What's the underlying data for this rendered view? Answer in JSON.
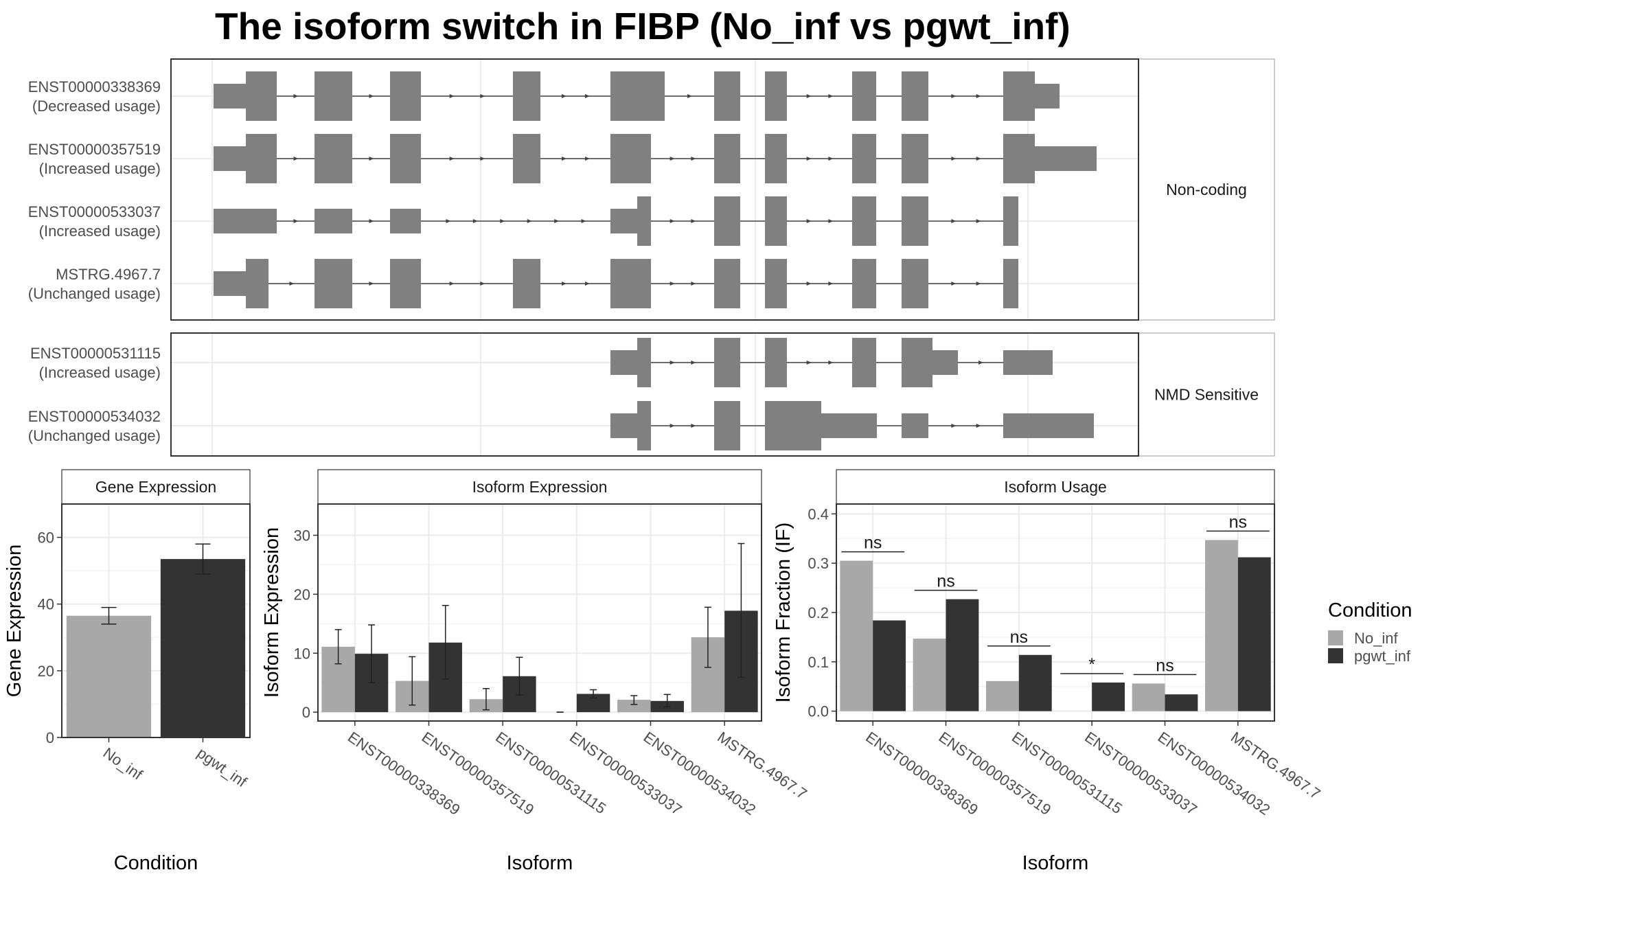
{
  "title": "The isoform switch in FIBP (No_inf vs pgwt_inf)",
  "colors": {
    "No_inf": "#a8a8a8",
    "pgwt_inf": "#333333",
    "exon": "#808080"
  },
  "structure": {
    "groups": [
      {
        "label": "Non-coding",
        "isoforms": [
          {
            "id": "ENST00000338369",
            "usage": "(Decreased usage)"
          },
          {
            "id": "ENST00000357519",
            "usage": "(Increased usage)"
          },
          {
            "id": "ENST00000533037",
            "usage": "(Increased usage)"
          },
          {
            "id": "MSTRG.4967.7",
            "usage": "(Unchanged usage)"
          }
        ]
      },
      {
        "label": "NMD Sensitive",
        "isoforms": [
          {
            "id": "ENST00000531115",
            "usage": "(Increased usage)"
          },
          {
            "id": "ENST00000534032",
            "usage": "(Unchanged usage)"
          }
        ]
      }
    ]
  },
  "chart_data": [
    {
      "type": "bar",
      "panel": "Gene Expression",
      "categories": [
        "No_inf",
        "pgwt_inf"
      ],
      "values": [
        36.5,
        53.5
      ],
      "errors_low": [
        34,
        49
      ],
      "errors_high": [
        39,
        58
      ],
      "ylim": [
        0,
        70
      ],
      "yticks": [
        0,
        20,
        40,
        60
      ],
      "xlabel": "Condition",
      "ylabel": "Gene Expression"
    },
    {
      "type": "bar",
      "panel": "Isoform Expression",
      "categories": [
        "ENST00000338369",
        "ENST00000357519",
        "ENST00000531115",
        "ENST00000533037",
        "ENST00000534032",
        "MSTRG.4967.7"
      ],
      "series": [
        {
          "name": "No_inf",
          "values": [
            11.1,
            5.3,
            2.2,
            0,
            2.1,
            12.7
          ],
          "low": [
            8.2,
            1.2,
            0.4,
            0,
            1.3,
            7.6
          ],
          "high": [
            14.0,
            9.4,
            4.0,
            0,
            2.8,
            17.8
          ]
        },
        {
          "name": "pgwt_inf",
          "values": [
            9.9,
            11.8,
            6.1,
            3.1,
            1.9,
            17.2
          ],
          "low": [
            5.0,
            5.6,
            2.9,
            2.4,
            0.9,
            5.9
          ],
          "high": [
            14.8,
            18.1,
            9.3,
            3.8,
            3.0,
            28.6
          ]
        }
      ],
      "ylim": [
        -1.5,
        35.3
      ],
      "yticks": [
        0,
        10,
        20,
        30
      ],
      "xlabel": "Isoform",
      "ylabel": "Isoform Expression"
    },
    {
      "type": "bar",
      "panel": "Isoform Usage",
      "categories": [
        "ENST00000338369",
        "ENST00000357519",
        "ENST00000531115",
        "ENST00000533037",
        "ENST00000534032",
        "MSTRG.4967.7"
      ],
      "series": [
        {
          "name": "No_inf",
          "values": [
            0.305,
            0.147,
            0.061,
            0,
            0.056,
            0.347
          ]
        },
        {
          "name": "pgwt_inf",
          "values": [
            0.184,
            0.227,
            0.114,
            0.058,
            0.034,
            0.312
          ]
        }
      ],
      "significance": [
        "ns",
        "ns",
        "ns",
        "*",
        "ns",
        "ns"
      ],
      "ylim": [
        -0.02,
        0.42
      ],
      "yticks": [
        0.0,
        0.1,
        0.2,
        0.3,
        0.4
      ],
      "xlabel": "Isoform",
      "ylabel": "Isoform Fraction (IF)"
    }
  ],
  "legend": {
    "title": "Condition",
    "items": [
      "No_inf",
      "pgwt_inf"
    ]
  }
}
